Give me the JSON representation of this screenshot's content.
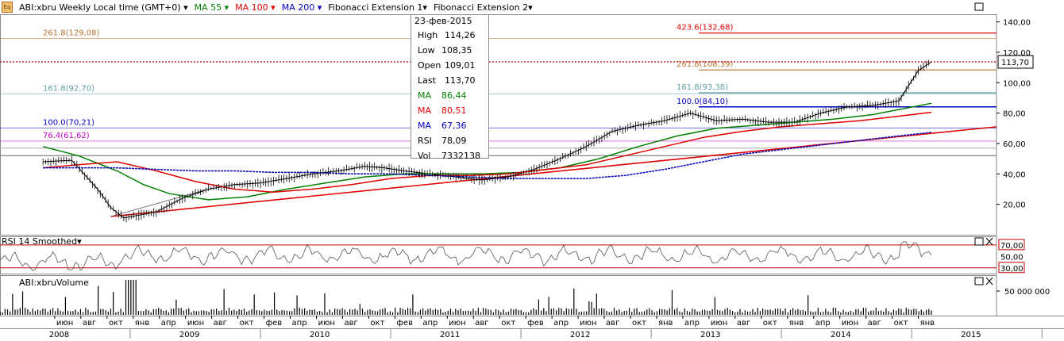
{
  "header": {
    "title": "ABI:xbru Weekly Local time (GMT+0)",
    "indicators": [
      {
        "label": "MA 55",
        "color": "#008000"
      },
      {
        "label": "MA 100",
        "color": "#e00000"
      },
      {
        "label": "MA 200",
        "color": "#0000c0"
      },
      {
        "label": "Fibonacci Extension 1",
        "color": "#000000"
      },
      {
        "label": "Fibonacci Extension 2",
        "color": "#000000"
      }
    ],
    "logo_icon": "chart-logo-icon"
  },
  "tooltip": {
    "date": "23-фев-2015",
    "rows": [
      {
        "label": "High",
        "value": "114,26",
        "color": "#000000"
      },
      {
        "label": "Low",
        "value": "108,35",
        "color": "#000000"
      },
      {
        "label": "Open",
        "value": "109,01",
        "color": "#000000"
      },
      {
        "label": "Last",
        "value": "113,70",
        "color": "#000000"
      },
      {
        "label": "MA",
        "value": "86,44",
        "color": "#008000"
      },
      {
        "label": "MA",
        "value": "80,51",
        "color": "#e00000"
      },
      {
        "label": "MA",
        "value": "67,36",
        "color": "#0000c0"
      },
      {
        "label": "RSI",
        "value": "78,09",
        "color": "#000000"
      },
      {
        "label": "Vol",
        "value": "7332138",
        "color": "#000000"
      }
    ]
  },
  "fib_labels": [
    {
      "text": "261.8(129,08)",
      "color": "#b87333",
      "value": 129.08
    },
    {
      "text": "161.8(92,70)",
      "color": "#5f9ea0",
      "value": 92.7
    },
    {
      "text": "100.0(70,21)",
      "color": "#0000c0",
      "value": 70.21
    },
    {
      "text": "76.4(61,62)",
      "color": "#c000c0",
      "value": 61.62
    },
    {
      "text": "423.6(132,68)",
      "color": "#e00000",
      "value": 132.68
    },
    {
      "text": "261.8(108,39)",
      "color": "#b87333",
      "value": 108.39
    },
    {
      "text": "161.8(93,38)",
      "color": "#5f9ea0",
      "value": 93.38
    },
    {
      "text": "100.0(84,10)",
      "color": "#0000c0",
      "value": 84.1
    }
  ],
  "last_price_label": "113,70",
  "rsi": {
    "title": "RSI 14 Smoothed",
    "levels": [
      {
        "text": "70,00",
        "value": 70
      },
      {
        "text": "50,00",
        "value": 50
      },
      {
        "text": "30,00",
        "value": 30
      }
    ]
  },
  "volume": {
    "title": "ABI:xbruVolume",
    "axis_label": "50 000 000"
  },
  "chart_data": {
    "type": "line",
    "x_label": "",
    "y_label": "",
    "y_ticks": [
      "20,00",
      "40,00",
      "60,00",
      "80,00",
      "100,00",
      "120,00",
      "140,00"
    ],
    "ylim": [
      0,
      145
    ],
    "month_ticks": [
      "июн",
      "авг",
      "окт",
      "янв",
      "апр",
      "июн",
      "авг",
      "окт",
      "фев",
      "апр",
      "июн",
      "авг",
      "окт",
      "фев",
      "апр",
      "июн",
      "авг",
      "окт",
      "фев",
      "апр",
      "июн",
      "авг",
      "окт",
      "янв",
      "апр",
      "июн",
      "авг",
      "окт",
      "янв",
      "апр",
      "июн",
      "авг",
      "окт",
      "янв"
    ],
    "year_ticks": [
      "2008",
      "2009",
      "2010",
      "2011",
      "2012",
      "2013",
      "2014",
      "2015"
    ],
    "series": [
      {
        "name": "Price",
        "color": "#000000",
        "t": [
          2008.33,
          2008.55,
          2008.75,
          2008.85,
          2008.95,
          2009.2,
          2009.4,
          2009.6,
          2009.8,
          2010.0,
          2010.2,
          2010.4,
          2010.6,
          2010.8,
          2010.95,
          2011.1,
          2011.3,
          2011.5,
          2011.7,
          2011.9,
          2012.1,
          2012.3,
          2012.5,
          2012.7,
          2012.9,
          2013.1,
          2013.3,
          2013.5,
          2013.7,
          2013.9,
          2014.1,
          2014.3,
          2014.5,
          2014.7,
          2014.9,
          2015.05,
          2015.15
        ],
        "values": [
          48,
          49,
          30,
          18,
          11,
          15,
          24,
          30,
          33,
          34,
          37,
          40,
          42,
          45,
          44,
          42,
          40,
          38,
          36,
          38,
          43,
          50,
          58,
          68,
          72,
          75,
          80,
          75,
          76,
          74,
          74,
          80,
          84,
          85,
          88,
          108,
          113.7
        ]
      },
      {
        "name": "MA 55",
        "color": "#008000",
        "t": [
          2008.33,
          2008.6,
          2008.9,
          2009.1,
          2009.3,
          2009.6,
          2009.9,
          2010.2,
          2010.5,
          2010.8,
          2011.1,
          2011.4,
          2011.7,
          2012.0,
          2012.3,
          2012.6,
          2012.9,
          2013.2,
          2013.5,
          2013.8,
          2014.1,
          2014.4,
          2014.7,
          2015.0,
          2015.15
        ],
        "values": [
          58,
          52,
          42,
          33,
          27,
          23,
          25,
          30,
          34,
          38,
          40,
          40,
          40,
          41,
          44,
          50,
          58,
          65,
          70,
          72,
          74,
          76,
          79,
          84,
          86.44
        ]
      },
      {
        "name": "MA 100",
        "color": "#e00000",
        "t": [
          2008.33,
          2008.6,
          2008.9,
          2009.2,
          2009.5,
          2009.8,
          2010.1,
          2010.4,
          2010.7,
          2011.0,
          2011.3,
          2011.6,
          2011.9,
          2012.2,
          2012.5,
          2012.8,
          2013.1,
          2013.4,
          2013.7,
          2014.0,
          2014.3,
          2014.6,
          2014.9,
          2015.15
        ],
        "values": [
          44,
          46,
          48,
          42,
          35,
          30,
          28,
          30,
          33,
          37,
          39,
          39,
          40,
          43,
          46,
          52,
          58,
          64,
          68,
          71,
          73,
          75,
          78,
          80.51
        ]
      },
      {
        "name": "MA 200",
        "color": "#0000c0",
        "t": [
          2008.33,
          2008.6,
          2008.9,
          2009.2,
          2009.5,
          2009.8,
          2010.1,
          2010.4,
          2010.7,
          2011.0,
          2011.3,
          2011.6,
          2011.9,
          2012.2,
          2012.5,
          2012.8,
          2013.1,
          2013.4,
          2013.7,
          2014.0,
          2014.3,
          2014.6,
          2014.9,
          2015.15
        ],
        "values": [
          44,
          44,
          44,
          43,
          42,
          42,
          41,
          41,
          40,
          40,
          39,
          38,
          37,
          37,
          37,
          39,
          43,
          48,
          53,
          56,
          59,
          62,
          65,
          67.36
        ]
      }
    ]
  }
}
